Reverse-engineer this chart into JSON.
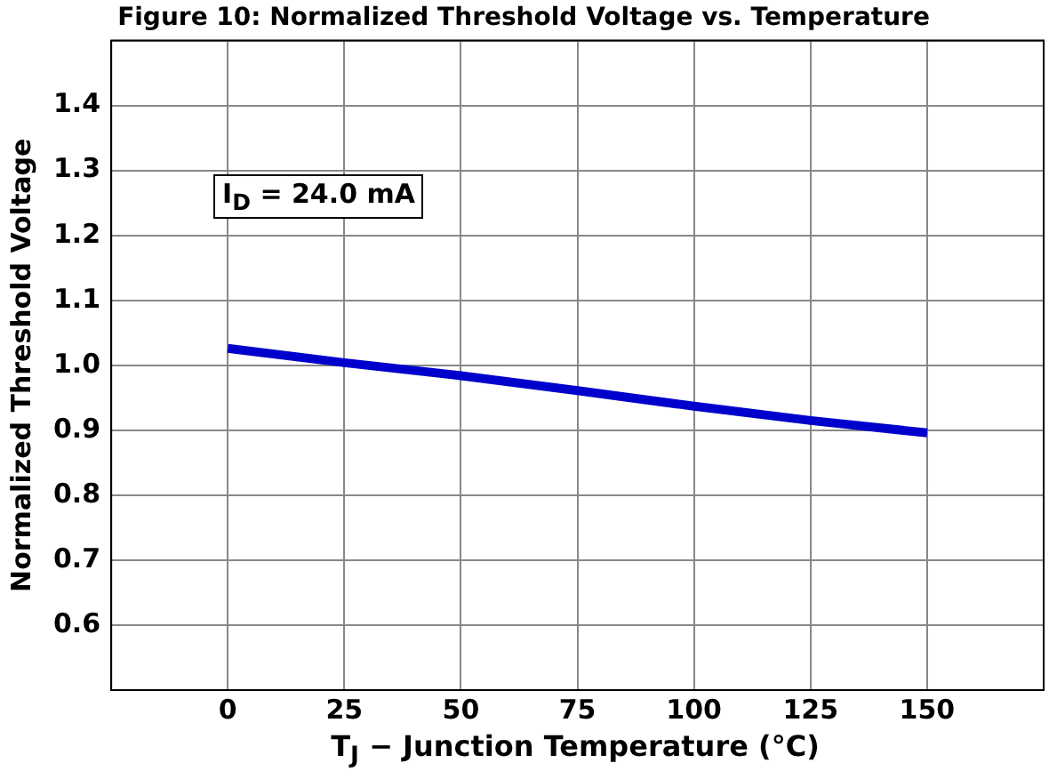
{
  "chart_data": {
    "type": "line",
    "title": "Figure 10: Normalized Threshold Voltage vs. Temperature",
    "xlabel": "T$_{J}$ − Junction Temperature (°C)",
    "ylabel": "Normalized Threshold Voltage",
    "annotations": [
      "I$_{D}$ = 24.0 mA"
    ],
    "x": [
      0,
      25,
      50,
      75,
      100,
      125,
      150
    ],
    "series": [
      {
        "color": "#0000cc",
        "values": [
          1.026,
          1.004,
          0.984,
          0.961,
          0.937,
          0.915,
          0.896
        ]
      }
    ],
    "xlim": [
      -25,
      175
    ],
    "xticks": [
      {
        "value": -25,
        "label": null
      },
      0,
      25,
      50,
      75,
      100,
      125,
      150,
      {
        "value": 175,
        "label": null
      }
    ],
    "ylim": [
      0.5,
      1.5
    ],
    "yticks": [
      {
        "value": 0.5,
        "label": null
      },
      0.6,
      0.7,
      0.8,
      0.9,
      {
        "value": 1,
        "label": "1.0"
      },
      1.1,
      1.2,
      1.3,
      1.4,
      {
        "value": 1.5,
        "label": null
      }
    ],
    "grid": true,
    "legend": false,
    "marker": "none",
    "line_style": "solid"
  }
}
